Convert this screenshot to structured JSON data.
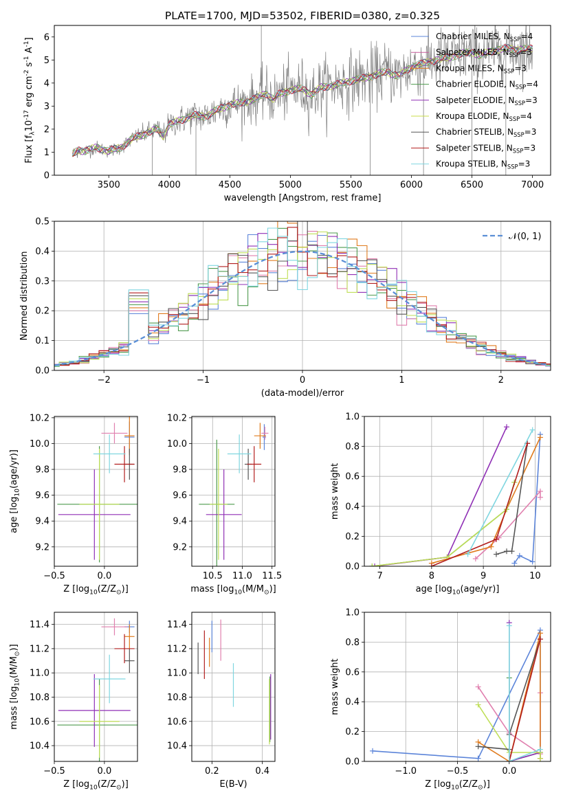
{
  "colors": {
    "Chabrier MILES": "#5b84d9",
    "Salpeter MILES": "#c65a9a",
    "Kroupa MILES": "#e07b1d",
    "Chabrier ELODIE": "#4d9a4d",
    "Salpeter ELODIE": "#8f2fb5",
    "Kroupa ELODIE": "#c9dd4a",
    "Chabrier STELIB": "#555555",
    "Salpeter STELIB": "#b21e1e",
    "Kroupa STELIB": "#7fd6e0",
    "Kroupa ELODIE line": "#bede55",
    "Salpeter MILES line": "#e07fae",
    "data": "#7f7f7f",
    "normal": "#5b8fd6"
  },
  "chart_data": [
    {
      "id": "spectrum",
      "type": "line",
      "title": "PLATE=1700, MJD=53502, FIBERID=0380, z=0.325",
      "xlabel": "wavelength [Angstrom, rest frame]",
      "ylabel": "Flux [f$_\\lambda$10$^{-17}$ erg cm$^{-2}$ s$^{-1}$ A$^{-1}$]",
      "xlim": [
        3050,
        7150
      ],
      "ylim": [
        0,
        6.5
      ],
      "xticks": [
        3500,
        4000,
        4500,
        5000,
        5500,
        6000,
        6500,
        7000
      ],
      "yticks": [
        0,
        1,
        2,
        3,
        4,
        5,
        6
      ],
      "legend_position": "upper right",
      "legend": [
        {
          "label": "Chabrier MILES, N$_{SSP}$=4",
          "key": "Chabrier MILES"
        },
        {
          "label": "Salpeter MILES, N$_{SSP}$=3",
          "key": "Salpeter MILES"
        },
        {
          "label": "Kroupa MILES, N$_{SSP}$=3",
          "key": "Kroupa MILES"
        },
        {
          "label": "Chabrier ELODIE, N$_{SSP}$=4",
          "key": "Chabrier ELODIE"
        },
        {
          "label": "Salpeter ELODIE, N$_{SSP}$=3",
          "key": "Salpeter ELODIE"
        },
        {
          "label": "Kroupa ELODIE, N$_{SSP}$=4",
          "key": "Kroupa ELODIE"
        },
        {
          "label": "Chabrier STELIB, N$_{SSP}$=3",
          "key": "Chabrier STELIB"
        },
        {
          "label": "Salpeter STELIB, N$_{SSP}$=3",
          "key": "Salpeter STELIB"
        },
        {
          "label": "Kroupa STELIB, N$_{SSP}$=3",
          "key": "Kroupa STELIB"
        }
      ],
      "model_continuum": [
        [
          3200,
          0.9
        ],
        [
          3250,
          1.1
        ],
        [
          3300,
          1.05
        ],
        [
          3400,
          1.2
        ],
        [
          3500,
          1.05
        ],
        [
          3600,
          1.2
        ],
        [
          3700,
          1.6
        ],
        [
          3800,
          1.8
        ],
        [
          3850,
          1.9
        ],
        [
          3900,
          2.0
        ],
        [
          3950,
          1.7
        ],
        [
          4000,
          2.2
        ],
        [
          4100,
          2.4
        ],
        [
          4200,
          2.6
        ],
        [
          4300,
          2.55
        ],
        [
          4400,
          2.85
        ],
        [
          4500,
          3.05
        ],
        [
          4600,
          3.15
        ],
        [
          4700,
          3.3
        ],
        [
          4800,
          3.55
        ],
        [
          4860,
          3.3
        ],
        [
          4900,
          3.5
        ],
        [
          5000,
          3.7
        ],
        [
          5100,
          3.75
        ],
        [
          5175,
          3.5
        ],
        [
          5250,
          3.8
        ],
        [
          5400,
          3.95
        ],
        [
          5500,
          4.1
        ],
        [
          5600,
          4.2
        ],
        [
          5700,
          4.35
        ],
        [
          5800,
          4.5
        ],
        [
          5890,
          4.3
        ],
        [
          6000,
          4.7
        ],
        [
          6100,
          4.85
        ],
        [
          6200,
          5.0
        ],
        [
          6300,
          5.1
        ],
        [
          6400,
          5.25
        ],
        [
          6500,
          5.35
        ],
        [
          6563,
          5.2
        ],
        [
          6700,
          5.45
        ],
        [
          6800,
          5.5
        ],
        [
          6900,
          5.45
        ],
        [
          7000,
          5.5
        ]
      ]
    },
    {
      "id": "residuals",
      "type": "line",
      "xlabel": "(data-model)/error",
      "ylabel": "Normed distribution",
      "xlim": [
        -2.5,
        2.5
      ],
      "ylim": [
        0,
        0.5
      ],
      "xticks": [
        -2,
        -1,
        0,
        1,
        2
      ],
      "yticks": [
        0.0,
        0.1,
        0.2,
        0.3,
        0.4,
        0.5
      ],
      "legend": [
        {
          "label": "$\\mathcal{N}(0, 1)$",
          "key": "normal"
        }
      ],
      "legend_position": "upper right",
      "bin_width": 0.1
    },
    {
      "id": "age_vs_Z",
      "type": "scatter",
      "xlabel": "Z [log$_{10}$(Z/Z$_\\odot$)]",
      "ylabel": "age  [log$_{10}$(age/yr)]",
      "xlim": [
        -0.5,
        0.33
      ],
      "ylim": [
        9.05,
        10.21
      ],
      "xticks": [
        -0.5,
        0.0
      ],
      "yticks": [
        9.2,
        9.4,
        9.6,
        9.8,
        10.0,
        10.2
      ],
      "points": [
        {
          "key": "Chabrier MILES",
          "x": 0.25,
          "xerr": 0.05,
          "y": 10.05,
          "yerr": 0.12
        },
        {
          "key": "Salpeter MILES",
          "x": 0.1,
          "xerr": 0.13,
          "y": 10.08,
          "yerr": 0.08
        },
        {
          "key": "Kroupa MILES",
          "x": 0.25,
          "xerr": 0.05,
          "y": 10.06,
          "yerr": 0.15
        },
        {
          "key": "Chabrier ELODIE",
          "x": -0.05,
          "xerr": 0.42,
          "y": 9.53,
          "yerr": 0.45
        },
        {
          "key": "Salpeter ELODIE",
          "x": -0.1,
          "xerr": 0.36,
          "y": 9.45,
          "yerr": 0.35
        },
        {
          "key": "Kroupa ELODIE",
          "x": -0.05,
          "xerr": 0.2,
          "y": 9.53,
          "yerr": 0.43
        },
        {
          "key": "Chabrier STELIB",
          "x": 0.25,
          "xerr": 0.05,
          "y": 9.84,
          "yerr": 0.12
        },
        {
          "key": "Salpeter STELIB",
          "x": 0.2,
          "xerr": 0.1,
          "y": 9.84,
          "yerr": 0.14
        },
        {
          "key": "Kroupa STELIB",
          "x": 0.05,
          "xerr": 0.16,
          "y": 9.92,
          "yerr": 0.15
        }
      ]
    },
    {
      "id": "age_vs_mass",
      "type": "scatter",
      "xlabel": "mass [log$_{10}$(M/M$_\\odot$)]",
      "ylabel": "",
      "xlim": [
        10.15,
        11.55
      ],
      "ylim": [
        9.05,
        10.21
      ],
      "xticks": [
        10.5,
        11.0,
        11.5
      ],
      "yticks": [
        9.2,
        9.4,
        9.6,
        9.8,
        10.0,
        10.2
      ],
      "points": [
        {
          "key": "Chabrier MILES",
          "x": 11.37,
          "xerr": 0.03,
          "y": 10.05,
          "yerr": 0.1
        },
        {
          "key": "Salpeter MILES",
          "x": 11.38,
          "xerr": 0.06,
          "y": 10.08,
          "yerr": 0.05
        },
        {
          "key": "Kroupa MILES",
          "x": 11.3,
          "xerr": 0.1,
          "y": 10.06,
          "yerr": 0.1
        },
        {
          "key": "Chabrier ELODIE",
          "x": 10.57,
          "xerr": 0.3,
          "y": 9.53,
          "yerr": 0.5
        },
        {
          "key": "Salpeter ELODIE",
          "x": 10.69,
          "xerr": 0.3,
          "y": 9.45,
          "yerr": 0.35
        },
        {
          "key": "Kroupa ELODIE",
          "x": 10.6,
          "xerr": 0.15,
          "y": 9.53,
          "yerr": 0.43
        },
        {
          "key": "Chabrier STELIB",
          "x": 11.1,
          "xerr": 0.06,
          "y": 9.84,
          "yerr": 0.12
        },
        {
          "key": "Salpeter STELIB",
          "x": 11.2,
          "xerr": 0.12,
          "y": 9.84,
          "yerr": 0.14
        },
        {
          "key": "Kroupa STELIB",
          "x": 10.95,
          "xerr": 0.2,
          "y": 9.92,
          "yerr": 0.15
        }
      ]
    },
    {
      "id": "weight_vs_age",
      "type": "line",
      "xlabel": "age  [log$_{10}$(age/yr)]",
      "ylabel": "mass weight",
      "xlim": [
        6.7,
        10.3
      ],
      "ylim": [
        0,
        1
      ],
      "xticks": [
        7,
        8,
        9,
        10
      ],
      "yticks": [
        0.0,
        0.2,
        0.4,
        0.6,
        0.8,
        1.0
      ],
      "series": [
        {
          "key": "Chabrier MILES",
          "points": [
            [
              9.6,
              0.02
            ],
            [
              9.7,
              0.07
            ],
            [
              9.95,
              0.03
            ],
            [
              10.1,
              0.88
            ]
          ]
        },
        {
          "key": "Salpeter MILES",
          "points": [
            [
              8.85,
              0.05
            ],
            [
              9.3,
              0.19
            ],
            [
              10.1,
              0.5
            ],
            [
              10.1,
              0.46
            ]
          ]
        },
        {
          "key": "Kroupa MILES",
          "points": [
            [
              8.0,
              0.02
            ],
            [
              9.15,
              0.13
            ],
            [
              9.45,
              0.38
            ],
            [
              10.1,
              0.86
            ]
          ]
        },
        {
          "key": "Chabrier ELODIE",
          "points": [
            [
              6.85,
              0.0
            ],
            [
              8.3,
              0.06
            ],
            [
              9.45,
              0.38
            ],
            [
              9.6,
              0.56
            ]
          ]
        },
        {
          "key": "Salpeter ELODIE",
          "points": [
            [
              6.9,
              0.0
            ],
            [
              8.3,
              0.06
            ],
            [
              9.45,
              0.93
            ]
          ]
        },
        {
          "key": "Kroupa ELODIE",
          "points": [
            [
              6.85,
              0.0
            ],
            [
              8.3,
              0.06
            ],
            [
              9.45,
              0.38
            ],
            [
              9.6,
              0.56
            ]
          ]
        },
        {
          "key": "Chabrier STELIB",
          "points": [
            [
              9.25,
              0.08
            ],
            [
              9.45,
              0.1
            ],
            [
              9.55,
              0.1
            ],
            [
              9.85,
              0.82
            ]
          ]
        },
        {
          "key": "Salpeter STELIB",
          "points": [
            [
              8.0,
              0.0
            ],
            [
              9.25,
              0.18
            ],
            [
              9.85,
              0.82
            ]
          ]
        },
        {
          "key": "Kroupa STELIB",
          "points": [
            [
              8.7,
              0.08
            ],
            [
              9.95,
              0.91
            ]
          ]
        }
      ]
    },
    {
      "id": "mass_vs_Z",
      "type": "scatter",
      "xlabel": "Z [log$_{10}$(Z/Z$_\\odot$)]",
      "ylabel": "mass [log$_{10}$(M/M$_\\odot$)]",
      "xlim": [
        -0.5,
        0.33
      ],
      "ylim": [
        10.27,
        11.5
      ],
      "xticks": [
        -0.5,
        0.0
      ],
      "yticks": [
        10.4,
        10.6,
        10.8,
        11.0,
        11.2,
        11.4
      ],
      "points": [
        {
          "key": "Chabrier MILES",
          "x": 0.25,
          "xerr": 0.05,
          "y": 11.38,
          "yerr": 0.05
        },
        {
          "key": "Salpeter MILES",
          "x": 0.1,
          "xerr": 0.13,
          "y": 11.38,
          "yerr": 0.07
        },
        {
          "key": "Kroupa MILES",
          "x": 0.25,
          "xerr": 0.05,
          "y": 11.3,
          "yerr": 0.1
        },
        {
          "key": "Chabrier ELODIE",
          "x": -0.05,
          "xerr": 0.42,
          "y": 10.57,
          "yerr": 0.38
        },
        {
          "key": "Salpeter ELODIE",
          "x": -0.1,
          "xerr": 0.36,
          "y": 10.69,
          "yerr": 0.3
        },
        {
          "key": "Kroupa ELODIE",
          "x": -0.05,
          "xerr": 0.2,
          "y": 10.6,
          "yerr": 0.3
        },
        {
          "key": "Chabrier STELIB",
          "x": 0.25,
          "xerr": 0.05,
          "y": 11.1,
          "yerr": 0.1
        },
        {
          "key": "Salpeter STELIB",
          "x": 0.2,
          "xerr": 0.1,
          "y": 11.2,
          "yerr": 0.12
        },
        {
          "key": "Kroupa STELIB",
          "x": 0.05,
          "xerr": 0.16,
          "y": 10.95,
          "yerr": 0.2
        }
      ]
    },
    {
      "id": "mass_vs_ebv",
      "type": "scatter",
      "xlabel": "E(B-V)",
      "ylabel": "",
      "xlim": [
        0.12,
        0.45
      ],
      "ylim": [
        10.27,
        11.5
      ],
      "xticks": [
        0.2,
        0.4
      ],
      "yticks": [
        10.4,
        10.6,
        10.8,
        11.0,
        11.2,
        11.4
      ],
      "points": [
        {
          "key": "Chabrier MILES",
          "x": 0.2,
          "xerr": 0,
          "y": 11.3,
          "yerr": 0.13
        },
        {
          "key": "Salpeter MILES",
          "x": 0.235,
          "xerr": 0,
          "y": 11.27,
          "yerr": 0.17
        },
        {
          "key": "Kroupa MILES",
          "x": 0.19,
          "xerr": 0,
          "y": 11.17,
          "yerr": 0.12
        },
        {
          "key": "Chabrier ELODIE",
          "x": 0.43,
          "xerr": 0,
          "y": 10.7,
          "yerr": 0.27
        },
        {
          "key": "Salpeter ELODIE",
          "x": 0.433,
          "xerr": 0,
          "y": 10.72,
          "yerr": 0.27
        },
        {
          "key": "Kroupa ELODIE",
          "x": 0.428,
          "xerr": 0,
          "y": 10.68,
          "yerr": 0.27
        },
        {
          "key": "Chabrier STELIB",
          "x": 0.145,
          "xerr": 0,
          "y": 11.12,
          "yerr": 0.13
        },
        {
          "key": "Salpeter STELIB",
          "x": 0.17,
          "xerr": 0,
          "y": 11.15,
          "yerr": 0.2
        },
        {
          "key": "Kroupa STELIB",
          "x": 0.285,
          "xerr": 0,
          "y": 10.9,
          "yerr": 0.18
        }
      ]
    },
    {
      "id": "weight_vs_Z",
      "type": "line",
      "xlabel": "Z [log$_{10}$(Z/Z$_\\odot$)]",
      "ylabel": "mass weight",
      "xlim": [
        -1.4,
        0.4
      ],
      "ylim": [
        0,
        1
      ],
      "xticks": [
        -1.0,
        -0.5,
        0.0
      ],
      "yticks": [
        0.0,
        0.2,
        0.4,
        0.6,
        0.8,
        1.0
      ],
      "series": [
        {
          "key": "Chabrier MILES",
          "points": [
            [
              -1.32,
              0.07
            ],
            [
              -0.3,
              0.02
            ],
            [
              0.3,
              0.88
            ],
            [
              0.3,
              0.02
            ]
          ]
        },
        {
          "key": "Salpeter MILES",
          "points": [
            [
              -0.3,
              0.5
            ],
            [
              0.0,
              0.19
            ],
            [
              0.3,
              0.05
            ],
            [
              0.3,
              0.46
            ],
            [
              0.3,
              0.02
            ]
          ]
        },
        {
          "key": "Kroupa MILES",
          "points": [
            [
              -0.3,
              0.13
            ],
            [
              0.0,
              0.0
            ],
            [
              0.3,
              0.86
            ],
            [
              0.3,
              0.02
            ]
          ]
        },
        {
          "key": "Chabrier ELODIE",
          "points": [
            [
              0.0,
              0.56
            ],
            [
              0.0,
              0.0
            ],
            [
              0.3,
              0.06
            ]
          ]
        },
        {
          "key": "Salpeter ELODIE",
          "points": [
            [
              0.0,
              0.93
            ],
            [
              0.0,
              0.0
            ],
            [
              0.3,
              0.06
            ]
          ]
        },
        {
          "key": "Kroupa ELODIE",
          "points": [
            [
              -0.3,
              0.38
            ],
            [
              0.0,
              0.06
            ],
            [
              0.3,
              0.06
            ],
            [
              0.3,
              0.02
            ]
          ]
        },
        {
          "key": "Chabrier STELIB",
          "points": [
            [
              -0.3,
              0.1
            ],
            [
              0.0,
              0.08
            ],
            [
              0.0,
              0.18
            ],
            [
              0.3,
              0.82
            ]
          ]
        },
        {
          "key": "Salpeter STELIB",
          "points": [
            [
              0.0,
              0.0
            ],
            [
              0.3,
              0.82
            ]
          ]
        },
        {
          "key": "Kroupa STELIB",
          "points": [
            [
              0.0,
              0.91
            ],
            [
              0.0,
              0.0
            ],
            [
              0.3,
              0.08
            ]
          ]
        }
      ]
    }
  ]
}
